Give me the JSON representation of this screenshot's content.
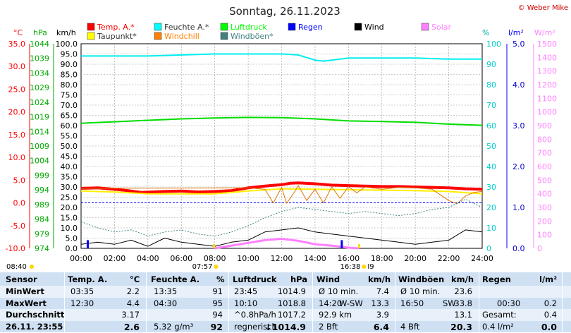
{
  "title": "Sonntag, 26.11.2023",
  "copyright": "© Weber Mike",
  "legend": [
    {
      "name": "Temp. A.*",
      "color": "#ff0000"
    },
    {
      "name": "Feuchte A.*",
      "color": "#00ffff"
    },
    {
      "name": "Luftdruck",
      "color": "#00ff00"
    },
    {
      "name": "Regen",
      "color": "#0000ff"
    },
    {
      "name": "Wind",
      "color": "#000000"
    },
    {
      "name": "Solar",
      "color": "#ff80ff"
    },
    {
      "name": "Taupunkt*",
      "color": "#ffff00"
    },
    {
      "name": "Windchill",
      "color": "#ff8000"
    },
    {
      "name": "Windböen*",
      "color": "#408080"
    }
  ],
  "axis_units": {
    "temp": "°C",
    "pressure": "hPa",
    "wind": "km/h",
    "humidity": "%",
    "rain": "l/m²",
    "solar": "W/m²"
  },
  "axes": {
    "temp_ticks": [
      "35.0",
      "30.0",
      "25.0",
      "20.0",
      "15.0",
      "10.0",
      "5.0",
      "0.0",
      "-5.0",
      "-10.0"
    ],
    "pressure_ticks": [
      "1044",
      "1039",
      "1034",
      "1029",
      "1024",
      "1019",
      "1014",
      "1009",
      "1004",
      "999",
      "994",
      "989",
      "984",
      "979",
      "974"
    ],
    "wind_ticks": [
      "100.0",
      "95.0",
      "90.0",
      "85.0",
      "80.0",
      "75.0",
      "70.0",
      "65.0",
      "60.0",
      "55.0",
      "50.0",
      "45.0",
      "40.0",
      "35.0",
      "30.0",
      "25.0",
      "20.0",
      "15.0",
      "10.0",
      "5.0",
      "0.0"
    ],
    "humidity_ticks": [
      "100",
      "90",
      "80",
      "70",
      "60",
      "50",
      "40",
      "30",
      "20",
      "10",
      "0"
    ],
    "rain_ticks": [
      "5.0",
      "4.0",
      "3.0",
      "2.0",
      "1.0",
      "0.0"
    ],
    "solar_ticks": [
      "1500",
      "1400",
      "1300",
      "1200",
      "1100",
      "1000",
      "900",
      "800",
      "700",
      "600",
      "500",
      "400",
      "300",
      "200",
      "100",
      "0"
    ],
    "time_ticks": [
      "00:00",
      "02:00",
      "04:00",
      "06:00",
      "08:00",
      "10:00",
      "12:00",
      "14:00",
      "16:00",
      "18:00",
      "20:00",
      "22:00",
      "24:00"
    ]
  },
  "sun": {
    "sunrise": "07:57",
    "sunset": "16:38",
    "day_length": "08:40",
    "marker": "I9"
  },
  "chart_data": {
    "type": "line",
    "title": "Sonntag, 26.11.2023",
    "x_unit": "hours",
    "xlim": [
      0,
      24
    ],
    "series": [
      {
        "name": "Temp. A.*",
        "axis": "temp",
        "ylim": [
          -10,
          35
        ],
        "x": [
          0,
          1,
          2,
          3,
          3.6,
          5,
          6,
          7,
          8,
          9,
          10,
          11,
          12,
          12.5,
          13,
          14,
          15,
          16,
          17,
          18,
          19,
          20,
          21,
          22,
          23,
          24
        ],
        "values": [
          3.2,
          3.3,
          3.0,
          2.6,
          2.3,
          2.5,
          2.6,
          2.4,
          2.5,
          2.7,
          3.3,
          3.7,
          4.0,
          4.3,
          4.4,
          4.2,
          3.9,
          3.8,
          3.7,
          3.6,
          3.6,
          3.5,
          3.4,
          3.3,
          3.1,
          3.0
        ]
      },
      {
        "name": "Taupunkt*",
        "axis": "temp",
        "ylim": [
          -10,
          35
        ],
        "x": [
          0,
          2,
          4,
          6,
          8,
          10,
          12,
          14,
          16,
          18,
          20,
          22,
          24
        ],
        "values": [
          2.6,
          2.4,
          2.0,
          2.0,
          2.0,
          2.6,
          3.1,
          3.0,
          2.9,
          2.8,
          2.7,
          2.5,
          2.0
        ]
      },
      {
        "name": "Feuchte A.*",
        "axis": "humidity",
        "ylim": [
          0,
          100
        ],
        "x": [
          0,
          2,
          4,
          6,
          8,
          10,
          12,
          13,
          14,
          14.5,
          15,
          16,
          18,
          20,
          22,
          24
        ],
        "values": [
          94,
          94,
          94,
          94.5,
          95,
          95,
          95,
          94.5,
          92,
          91.5,
          92,
          93,
          93,
          93,
          92.5,
          92.5
        ]
      },
      {
        "name": "Luftdruck",
        "axis": "pressure",
        "ylim": [
          974,
          1044
        ],
        "x": [
          0,
          2,
          4,
          6,
          8,
          10,
          12,
          14,
          16,
          18,
          20,
          22,
          24
        ],
        "values": [
          1016.8,
          1017.3,
          1017.8,
          1018.3,
          1018.6,
          1018.8,
          1018.7,
          1018.3,
          1017.6,
          1017.4,
          1017.1,
          1016.5,
          1016.1
        ]
      },
      {
        "name": "Windchill",
        "axis": "temp",
        "ylim": [
          -10,
          35
        ],
        "x": [
          0,
          10,
          11,
          11.5,
          12,
          12.3,
          12.7,
          13,
          13.5,
          14,
          14.5,
          15,
          15.5,
          16,
          16.5,
          17,
          18,
          19,
          20,
          21,
          22,
          22.5,
          23,
          23.5,
          24
        ],
        "values": [
          3.2,
          3.3,
          3.0,
          0.0,
          3.4,
          -0.1,
          2.0,
          3.8,
          0.5,
          3.0,
          0.0,
          3.5,
          1.0,
          3.6,
          2.2,
          3.5,
          3.0,
          3.4,
          3.3,
          3.0,
          0.5,
          -0.2,
          1.5,
          2.3,
          2.5
        ]
      },
      {
        "name": "Wind",
        "axis": "wind",
        "ylim": [
          0,
          100
        ],
        "x": [
          0,
          1,
          2,
          3,
          4,
          5,
          6,
          7,
          8,
          9,
          10,
          11,
          12,
          13,
          14,
          15,
          16,
          17,
          18,
          19,
          20,
          21,
          22,
          23,
          24
        ],
        "values": [
          2,
          3,
          2,
          4,
          1,
          5,
          3,
          2,
          1,
          3,
          4,
          8,
          9,
          10,
          8,
          7,
          6,
          5,
          4,
          3,
          2,
          3,
          4,
          9,
          8
        ]
      },
      {
        "name": "Windböen*",
        "axis": "wind",
        "ylim": [
          0,
          100
        ],
        "x": [
          0,
          1,
          2,
          3,
          4,
          5,
          6,
          7,
          8,
          9,
          10,
          11,
          12,
          13,
          14,
          15,
          16,
          17,
          18,
          19,
          20,
          21,
          22,
          23,
          24
        ],
        "values": [
          13,
          10,
          8,
          9,
          6,
          8,
          9,
          7,
          6,
          8,
          11,
          15,
          18,
          20,
          19,
          18,
          17,
          18,
          17,
          16,
          17,
          19,
          20,
          24,
          20
        ]
      },
      {
        "name": "Solar",
        "axis": "solar",
        "ylim": [
          0,
          1500
        ],
        "x": [
          8,
          9,
          10,
          11,
          12,
          13,
          14,
          15,
          16,
          16.6
        ],
        "values": [
          0,
          20,
          40,
          60,
          70,
          55,
          30,
          20,
          5,
          0
        ]
      },
      {
        "name": "Regen",
        "axis": "rain",
        "ylim": [
          0,
          5
        ],
        "x": [
          0.4,
          15.6
        ],
        "values": [
          0.2,
          0.2
        ]
      }
    ]
  },
  "stats": {
    "headers": {
      "sensor": "Sensor",
      "temp": "Temp. A.",
      "temp_unit": "°C",
      "hum": "Feuchte A.",
      "hum_unit": "%",
      "press": "Luftdruck",
      "press_unit": "hPa",
      "wind": "Wind",
      "wind_unit": "km/h",
      "gust": "Windböen",
      "gust_unit": "km/h",
      "rain": "Regen",
      "rain_unit": "l/m²"
    },
    "rows": [
      {
        "label": "MinWert",
        "temp_time": "03:35",
        "temp": "2.2",
        "hum_time": "13:35",
        "hum": "91",
        "press_time": "23:45",
        "press": "1014.9",
        "wind_desc": "Ø 10 min.",
        "wind_dir": "",
        "wind": "7.4",
        "gust_desc": "Ø 10 min.",
        "gust_dir": "",
        "gust": "23.6",
        "rain_desc": "",
        "rain_time": "",
        "rain": ""
      },
      {
        "label": "MaxWert",
        "temp_time": "12:30",
        "temp": "4.4",
        "hum_time": "04:30",
        "hum": "95",
        "press_time": "10:10",
        "press": "1018.8",
        "wind_desc": "14:20",
        "wind_dir": "W-SW",
        "wind": "13.3",
        "gust_desc": "16:50",
        "gust_dir": "SW",
        "gust": "33.8",
        "rain_desc": "",
        "rain_time": "00:30",
        "rain": "0.2"
      },
      {
        "label": "Durchschnitt",
        "temp_time": "",
        "temp": "3.17",
        "hum_time": "",
        "hum": "94",
        "press_time": "^0.8hPa/h",
        "press": "1017.2",
        "wind_desc": "92.9 km",
        "wind_dir": "",
        "wind": "3.9",
        "gust_desc": "",
        "gust_dir": "",
        "gust": "13.1",
        "rain_desc": "Gesamt:",
        "rain_time": "",
        "rain": "0.4"
      },
      {
        "label": "26.11. 23:55",
        "temp_time": "",
        "temp": "2.6",
        "hum_time": "5.32 g/m³",
        "hum": "92",
        "press_time": "regnerisch",
        "press": "↓1014.9",
        "wind_desc": "2 Bft",
        "wind_dir": "",
        "wind": "6.4",
        "gust_desc": "4 Bft",
        "gust_dir": "",
        "gust": "20.3",
        "rain_desc": "0.4 l/m²",
        "rain_time": "",
        "rain": "0.0"
      }
    ]
  }
}
